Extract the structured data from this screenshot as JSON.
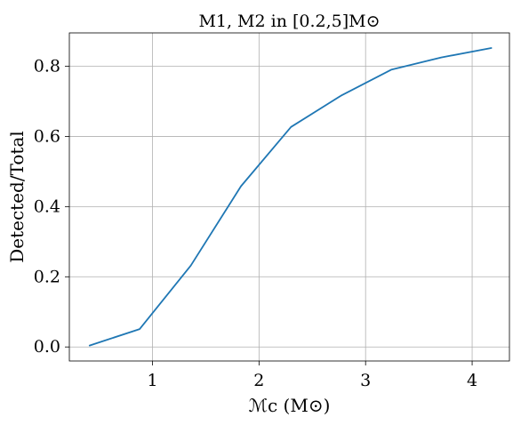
{
  "chart_data": {
    "type": "line",
    "title": "M1, M2 in [0.2,5]M⊙",
    "xlabel": "ℳc (M⊙)",
    "ylabel": "Detected/Total",
    "xlim": [
      0.22,
      4.35
    ],
    "ylim": [
      -0.04,
      0.895
    ],
    "xticks": [
      1,
      2,
      3,
      4
    ],
    "xtick_labels": [
      "1",
      "2",
      "3",
      "4"
    ],
    "yticks": [
      0.0,
      0.2,
      0.4,
      0.6,
      0.8
    ],
    "ytick_labels": [
      "0.0",
      "0.2",
      "0.4",
      "0.6",
      "0.8"
    ],
    "grid": true,
    "legend": "none",
    "series": [
      {
        "color": "#1f77b4",
        "x": [
          0.41,
          0.88,
          1.36,
          1.83,
          2.3,
          2.77,
          3.24,
          3.71,
          4.18
        ],
        "y": [
          0.004,
          0.051,
          0.232,
          0.458,
          0.627,
          0.716,
          0.79,
          0.825,
          0.852
        ]
      }
    ]
  }
}
